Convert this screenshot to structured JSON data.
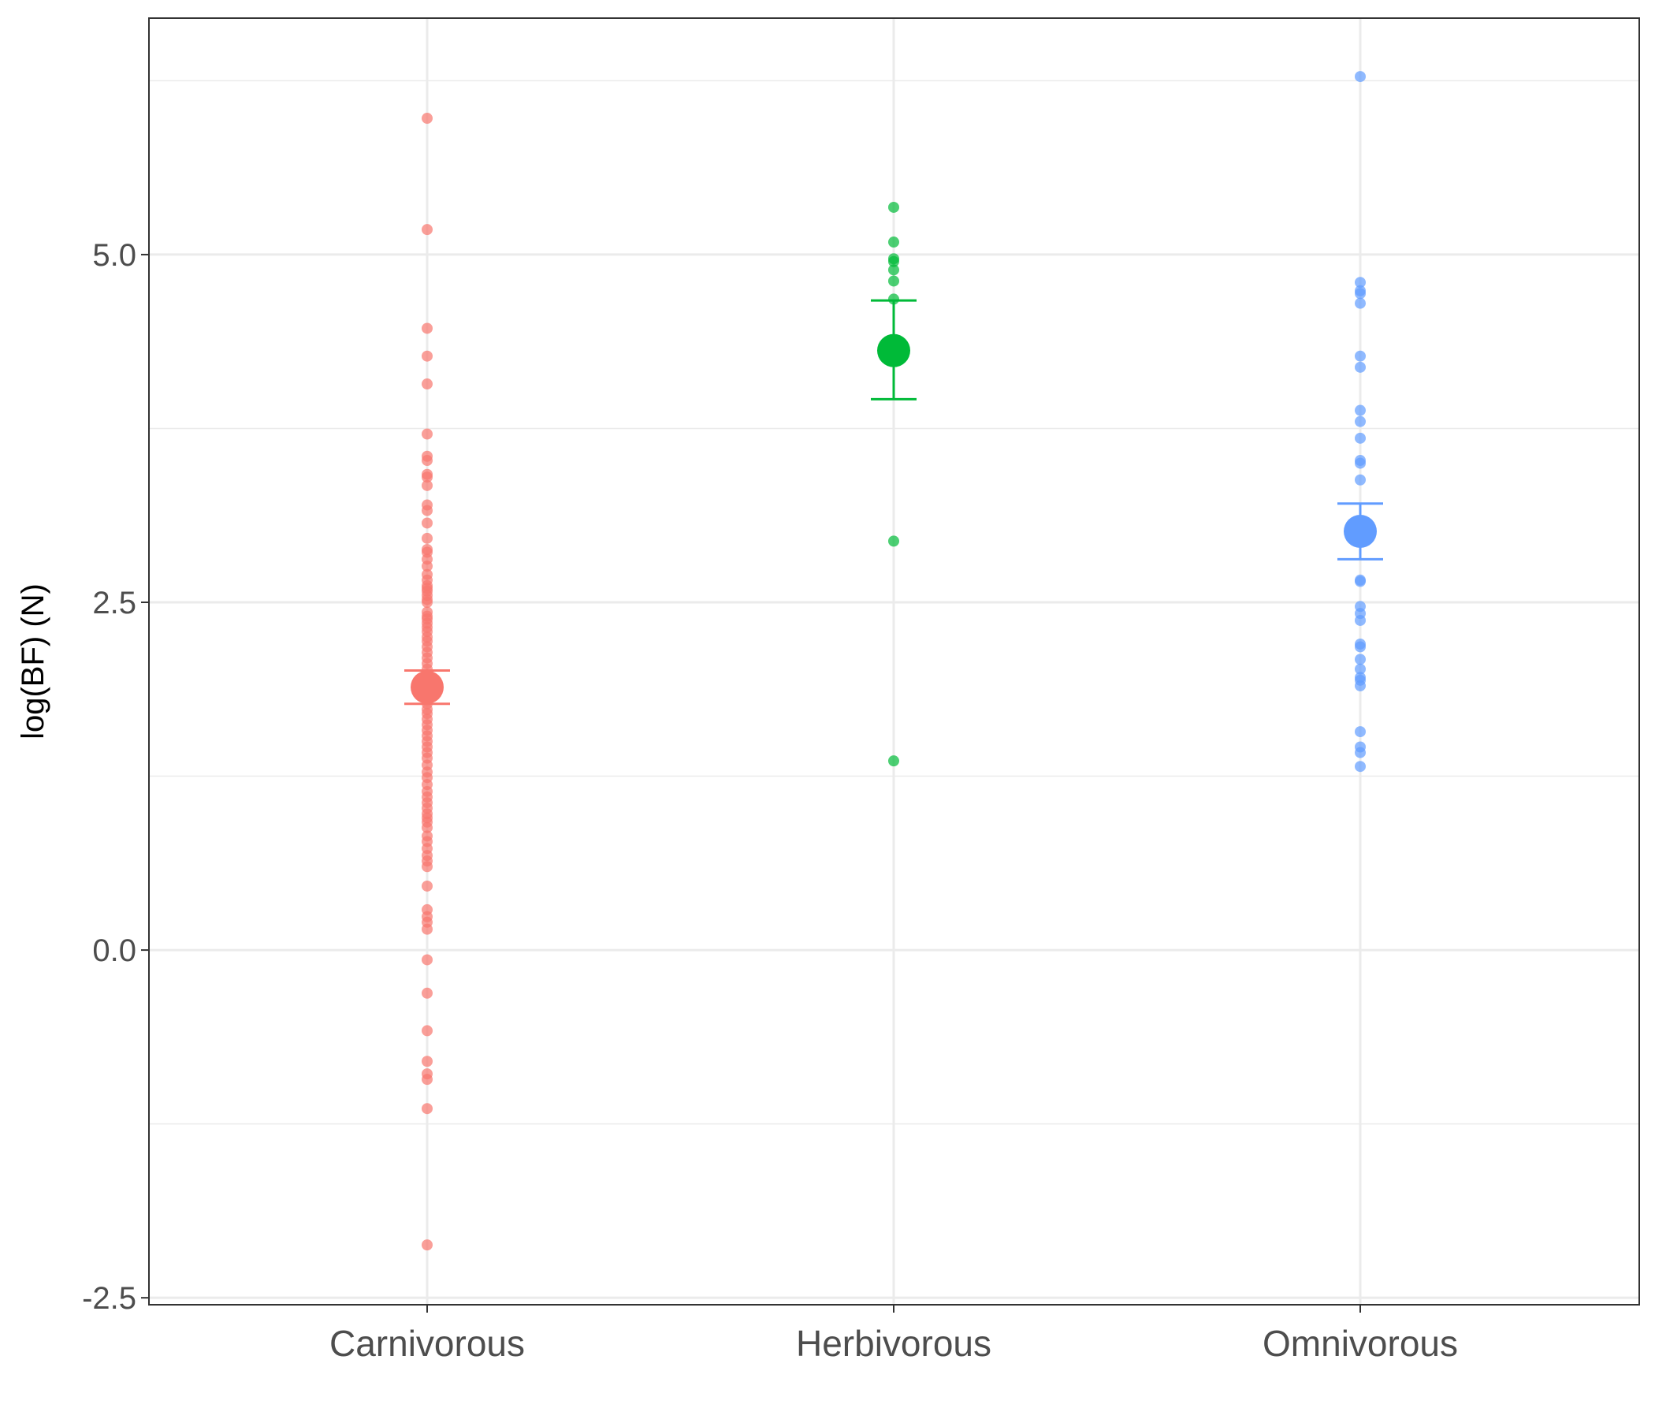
{
  "chart_data": {
    "type": "scatter",
    "title": "",
    "xlabel": "",
    "ylabel": "log(BF) (N)",
    "ylim": [
      -2.55,
      6.7
    ],
    "y_ticks": [
      -2.5,
      0.0,
      2.5,
      5.0
    ],
    "y_tick_labels": [
      "-2.5",
      "0.0",
      "2.5",
      "5.0"
    ],
    "y_minor_ticks": [
      -1.25,
      1.25,
      3.75,
      6.25
    ],
    "grid": true,
    "legend": "none",
    "categories": [
      "Carnivorous",
      "Herbivorous",
      "Omnivorous"
    ],
    "colors": {
      "Carnivorous": "#F8766D",
      "Herbivorous": "#00BA38",
      "Omnivorous": "#619CFF"
    },
    "series": [
      {
        "category": "Carnivorous",
        "points": [
          5.98,
          5.18,
          4.47,
          4.27,
          4.07,
          3.71,
          3.55,
          3.52,
          3.42,
          3.4,
          3.34,
          3.2,
          3.16,
          3.07,
          2.96,
          2.88,
          2.86,
          2.81,
          2.76,
          2.7,
          2.66,
          2.62,
          2.6,
          2.58,
          2.55,
          2.52,
          2.5,
          2.43,
          2.4,
          2.38,
          2.35,
          2.32,
          2.29,
          2.25,
          2.22,
          2.18,
          2.14,
          2.1,
          2.06,
          2.02,
          1.98,
          1.95,
          1.91,
          1.88,
          1.84,
          1.8,
          1.77,
          1.73,
          1.7,
          1.66,
          1.62,
          1.58,
          1.54,
          1.5,
          1.46,
          1.42,
          1.38,
          1.33,
          1.28,
          1.24,
          1.19,
          1.14,
          1.1,
          1.06,
          1.02,
          0.98,
          0.95,
          0.92,
          0.88,
          0.82,
          0.78,
          0.73,
          0.68,
          0.64,
          0.6,
          0.46,
          0.29,
          0.24,
          0.2,
          0.15,
          -0.07,
          -0.31,
          -0.58,
          -0.8,
          -0.89,
          -0.93,
          -1.14,
          -2.12
        ],
        "mean": 1.89,
        "error_low": 1.77,
        "error_high": 2.01
      },
      {
        "category": "Herbivorous",
        "points": [
          5.34,
          5.09,
          4.97,
          4.95,
          4.89,
          4.81,
          4.68,
          2.94,
          1.36
        ],
        "mean": 4.31,
        "error_low": 3.96,
        "error_high": 4.67
      },
      {
        "category": "Omnivorous",
        "points": [
          6.28,
          4.8,
          4.74,
          4.72,
          4.65,
          4.27,
          4.19,
          3.88,
          3.8,
          3.68,
          3.52,
          3.5,
          3.38,
          2.66,
          2.65,
          2.47,
          2.42,
          2.37,
          2.2,
          2.18,
          2.09,
          2.02,
          1.96,
          1.94,
          1.9,
          1.57,
          1.46,
          1.42,
          1.32
        ],
        "mean": 3.01,
        "error_low": 2.81,
        "error_high": 3.21
      }
    ]
  }
}
